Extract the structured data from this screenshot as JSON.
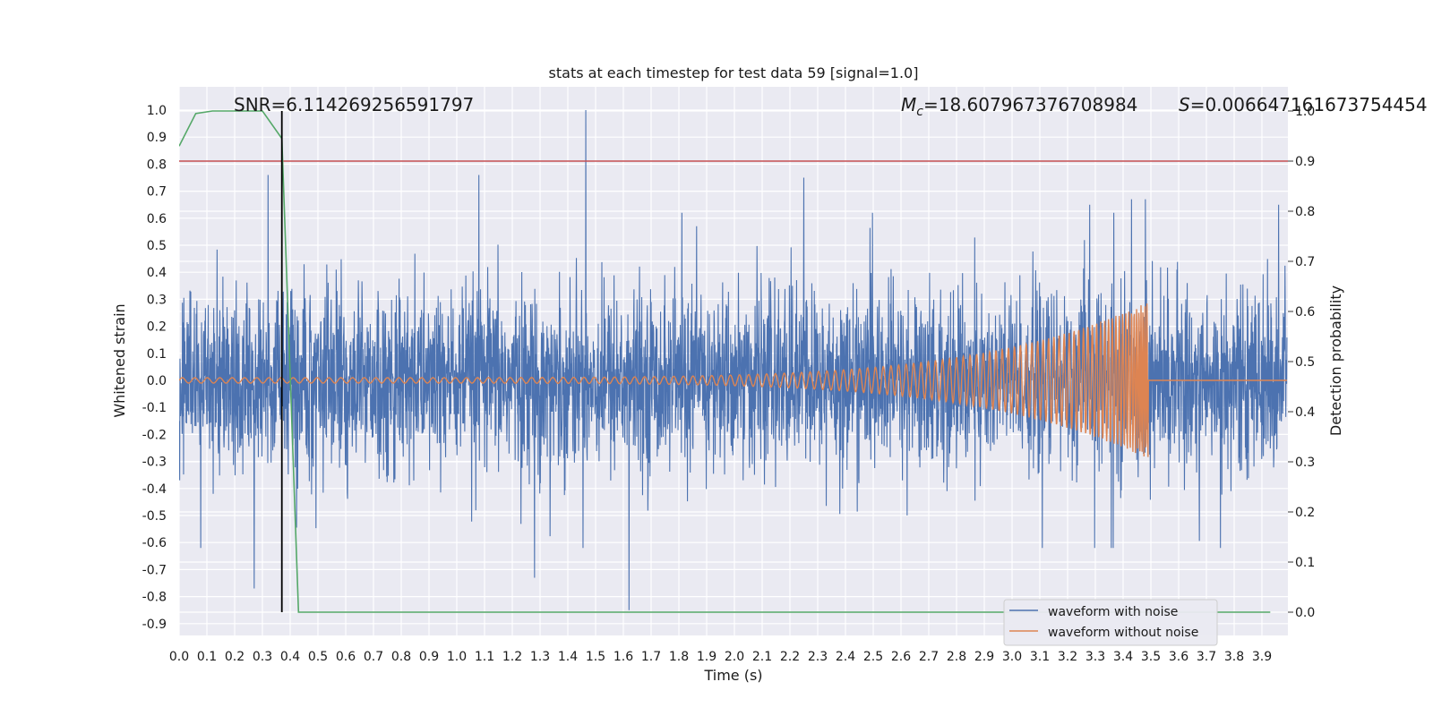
{
  "chart_data": {
    "type": "line",
    "title": "stats at each timestep for test data 59 [signal=1.0]",
    "xlabel": "Time (s)",
    "ylabel": "Whitened strain",
    "y2label": "Detection probability",
    "xlim": [
      0.0,
      3.99
    ],
    "ylim": [
      -0.95,
      1.09
    ],
    "y2lim": [
      -0.05,
      1.05
    ],
    "xticks": [
      "0.0",
      "0.1",
      "0.2",
      "0.3",
      "0.4",
      "0.5",
      "0.6",
      "0.7",
      "0.8",
      "0.9",
      "1.0",
      "1.1",
      "1.2",
      "1.3",
      "1.4",
      "1.5",
      "1.6",
      "1.7",
      "1.8",
      "1.9",
      "2.0",
      "2.1",
      "2.2",
      "2.3",
      "2.4",
      "2.5",
      "2.6",
      "2.7",
      "2.8",
      "2.9",
      "3.0",
      "3.1",
      "3.2",
      "3.3",
      "3.4",
      "3.5",
      "3.6",
      "3.7",
      "3.8",
      "3.9"
    ],
    "yticks": [
      "1.0",
      "0.9",
      "0.8",
      "0.7",
      "0.6",
      "0.5",
      "0.4",
      "0.3",
      "0.2",
      "0.1",
      "0.0",
      "-0.1",
      "-0.2",
      "-0.3",
      "-0.4",
      "-0.5",
      "-0.6",
      "-0.7",
      "-0.8",
      "-0.9"
    ],
    "y2ticks": [
      "1.0",
      "0.9",
      "0.8",
      "0.7",
      "0.6",
      "0.5",
      "0.4",
      "0.3",
      "0.2",
      "0.1",
      "0.0"
    ],
    "annotations": {
      "snr": "SNR=6.114269256591797",
      "mc_symbol": "M",
      "mc_sub": "c",
      "mc_value": "=18.607967376708984",
      "s_symbol": "S",
      "s_value": "=0.006647161673754454"
    },
    "threshold_y2": 0.9,
    "marker_time": 0.37,
    "series": [
      {
        "name": "waveform with noise",
        "color": "#4c72b0",
        "axis": "left",
        "envelope": "noise",
        "max_abs": 1.0,
        "peaks": [
          [
            1.465,
            1.0
          ],
          [
            1.62,
            -0.85
          ],
          [
            0.32,
            0.76
          ],
          [
            0.37,
            0.92
          ],
          [
            0.27,
            -0.77
          ],
          [
            1.08,
            0.76
          ],
          [
            2.25,
            0.75
          ],
          [
            1.28,
            -0.73
          ],
          [
            3.28,
            0.65
          ],
          [
            3.43,
            0.67
          ],
          [
            3.48,
            0.67
          ],
          [
            3.96,
            0.65
          ]
        ]
      },
      {
        "name": "waveform without noise",
        "color": "#dd8452",
        "axis": "left",
        "chirp": {
          "start": 0.0,
          "merger": 3.49,
          "amp_start": 0.01,
          "amp_peak": 0.29,
          "freq_start": 40,
          "freq_end": 140
        }
      },
      {
        "name": "detection probability",
        "color": "#55a868",
        "axis": "right",
        "x": [
          0.0,
          0.06,
          0.12,
          0.2,
          0.3,
          0.37,
          0.43,
          0.45,
          0.6,
          3.93
        ],
        "values": [
          0.93,
          0.995,
          1.0,
          1.0,
          1.0,
          0.945,
          0.0,
          0.0,
          0.0,
          0.0
        ]
      }
    ],
    "legend": {
      "position": "lower-right",
      "entries": [
        {
          "label": "waveform with noise",
          "color": "#4c72b0"
        },
        {
          "label": "waveform without noise",
          "color": "#dd8452"
        }
      ]
    },
    "grid": true
  }
}
